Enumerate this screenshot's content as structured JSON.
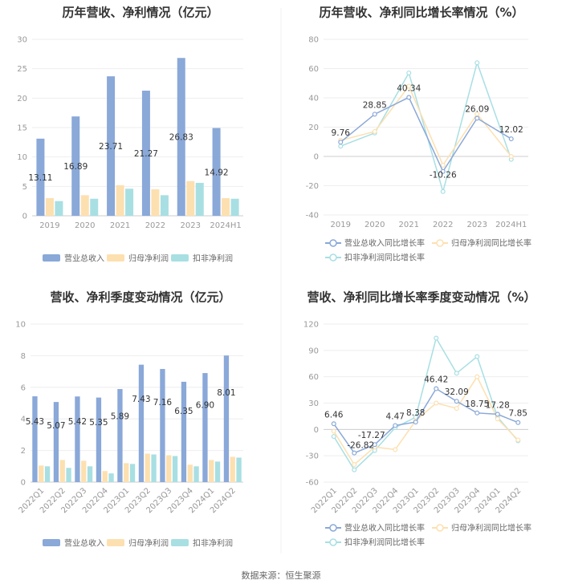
{
  "footer": "数据来源：恒生聚源",
  "colors": {
    "revenue": "#8aa8d8",
    "parent_profit": "#fde0b0",
    "deducted_profit": "#a8dfe3",
    "grid": "#eeeeee",
    "axis": "#cccccc"
  },
  "chart_data": [
    {
      "type": "bar",
      "title": "历年营收、净利情况（亿元）",
      "categories": [
        "2019",
        "2020",
        "2021",
        "2022",
        "2023",
        "2024H1"
      ],
      "ylim": [
        0,
        30
      ],
      "yticks": [
        0,
        5,
        10,
        15,
        20,
        25,
        30
      ],
      "series": [
        {
          "name": "营业总收入",
          "values": [
            13.11,
            16.89,
            23.71,
            21.27,
            26.83,
            14.92
          ]
        },
        {
          "name": "归母净利润",
          "values": [
            3.0,
            3.5,
            5.2,
            4.5,
            5.9,
            3.0
          ]
        },
        {
          "name": "扣非净利润",
          "values": [
            2.5,
            2.9,
            4.6,
            3.5,
            5.6,
            2.9
          ]
        }
      ],
      "data_labels": [
        "13.11",
        "16.89",
        "23.71",
        "21.27",
        "26.83",
        "14.92"
      ],
      "legend": [
        "营业总收入",
        "归母净利润",
        "扣非净利润"
      ]
    },
    {
      "type": "line",
      "title": "历年营收、净利同比增长率情况（%）",
      "categories": [
        "2019",
        "2020",
        "2021",
        "2022",
        "2023",
        "2024H1"
      ],
      "ylim": [
        -40,
        80
      ],
      "yticks": [
        -40,
        -20,
        0,
        20,
        40,
        60,
        80
      ],
      "series": [
        {
          "name": "营业总收入同比增长率",
          "values": [
            9.76,
            28.85,
            40.34,
            -10.26,
            26.09,
            12.02
          ]
        },
        {
          "name": "归母净利润同比增长率",
          "values": [
            11.0,
            17.0,
            48.0,
            -6.0,
            29.0,
            0.0
          ]
        },
        {
          "name": "扣非净利润同比增长率",
          "values": [
            7.0,
            16.0,
            57.0,
            -24.0,
            64.0,
            -2.0
          ]
        }
      ],
      "data_labels": [
        "9.76",
        "28.85",
        "40.34",
        "-10.26",
        "26.09",
        "12.02"
      ],
      "legend": [
        "营业总收入同比增长率",
        "归母净利润同比增长率",
        "扣非净利润同比增长率"
      ]
    },
    {
      "type": "bar",
      "title": "营收、净利季度变动情况（亿元）",
      "categories": [
        "2022Q1",
        "2022Q2",
        "2022Q3",
        "2022Q4",
        "2023Q1",
        "2023Q2",
        "2023Q3",
        "2023Q4",
        "2024Q1",
        "2024Q2"
      ],
      "ylim": [
        0,
        10
      ],
      "yticks": [
        0,
        2,
        4,
        6,
        8,
        10
      ],
      "series": [
        {
          "name": "营业总收入",
          "values": [
            5.43,
            5.07,
            5.42,
            5.35,
            5.89,
            7.43,
            7.16,
            6.35,
            6.9,
            8.01
          ]
        },
        {
          "name": "归母净利润",
          "values": [
            1.05,
            1.4,
            1.35,
            0.7,
            1.2,
            1.8,
            1.7,
            1.1,
            1.4,
            1.6
          ]
        },
        {
          "name": "扣非净利润",
          "values": [
            1.0,
            0.9,
            1.0,
            0.55,
            1.15,
            1.75,
            1.65,
            1.0,
            1.3,
            1.55
          ]
        }
      ],
      "data_labels": [
        "5.43",
        "5.07",
        "5.42",
        "5.35",
        "5.89",
        "7.43",
        "7.16",
        "6.35",
        "6.90",
        "8.01"
      ],
      "legend": [
        "营业总收入",
        "归母净利润",
        "扣非净利润"
      ]
    },
    {
      "type": "line",
      "title": "营收、净利同比增长率季度变动情况（%）",
      "categories": [
        "2022Q1",
        "2022Q2",
        "2022Q3",
        "2022Q4",
        "2023Q1",
        "2023Q2",
        "2023Q3",
        "2023Q4",
        "2024Q1",
        "2024Q2"
      ],
      "ylim": [
        -60,
        120
      ],
      "yticks": [
        -60,
        -30,
        0,
        30,
        60,
        90,
        120
      ],
      "series": [
        {
          "name": "营业总收入同比增长率",
          "values": [
            6.46,
            -26.82,
            -17.27,
            4.47,
            8.38,
            46.42,
            32.09,
            18.75,
            17.28,
            7.85
          ]
        },
        {
          "name": "归母净利润同比增长率",
          "values": [
            -2,
            -40,
            -20,
            -23,
            10,
            30,
            24,
            60,
            12,
            -12
          ]
        },
        {
          "name": "扣非净利润同比增长率",
          "values": [
            -8,
            -46,
            -24,
            2,
            14,
            104,
            64,
            83,
            14,
            -13
          ]
        }
      ],
      "data_labels": [
        "6.46",
        "-26.82",
        "-17.27",
        "4.47",
        "8.38",
        "46.42",
        "32.09",
        "18.75",
        "17.28",
        "7.85"
      ],
      "legend": [
        "营业总收入同比增长率",
        "归母净利润同比增长率",
        "扣非净利润同比增长率"
      ]
    }
  ]
}
